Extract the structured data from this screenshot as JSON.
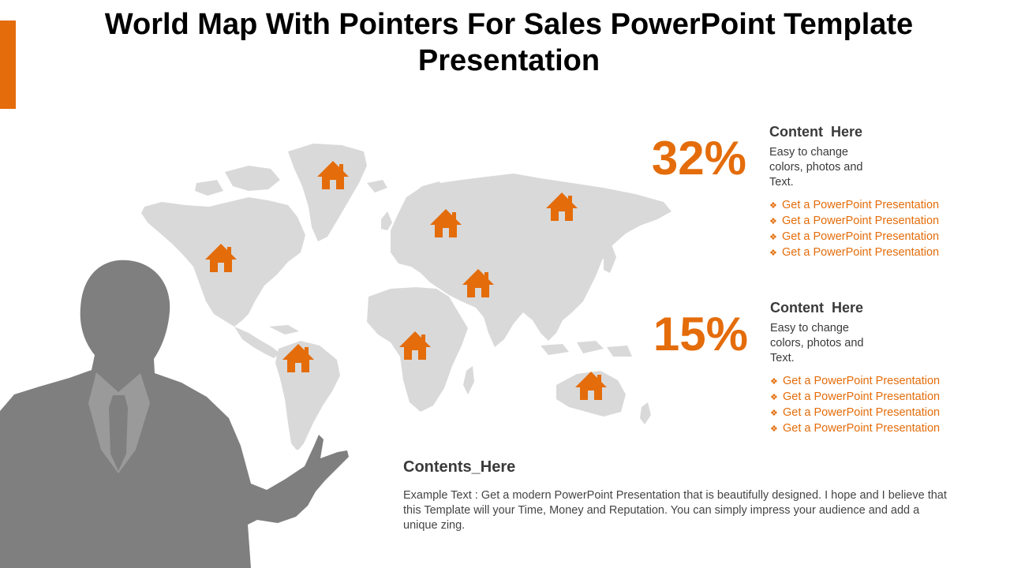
{
  "title": "World Map With Pointers For Sales PowerPoint Template Presentation",
  "colors": {
    "accent": "#E46C0A",
    "map_land": "#D9D9D9",
    "silhouette": "#7F7F7F",
    "text_dark": "#3A3A3A"
  },
  "map": {
    "pin_icon": "house-icon",
    "pin_regions": [
      "greenland",
      "north-america",
      "south-america",
      "scandinavia",
      "middle-east",
      "central-africa",
      "siberia",
      "australia"
    ]
  },
  "stats": [
    {
      "value": "32%",
      "heading": "Content  Here",
      "body": "Easy to change colors, photos and Text.",
      "bullets": [
        "Get a PowerPoint Presentation",
        "Get a PowerPoint Presentation",
        "Get a PowerPoint Presentation",
        "Get a PowerPoint Presentation"
      ]
    },
    {
      "value": "15%",
      "heading": "Content  Here",
      "body": "Easy to change colors, photos and Text.",
      "bullets": [
        "Get a PowerPoint Presentation",
        "Get a PowerPoint Presentation",
        "Get a PowerPoint Presentation",
        "Get a PowerPoint Presentation"
      ]
    }
  ],
  "bullet_icon": "diamond-bullet-icon",
  "contents": {
    "heading": "Contents_Here",
    "body": "Example Text : Get a modern PowerPoint  Presentation that is beautifully designed. I hope and I believe that this Template will your Time, Money and Reputation. You can simply impress your audience and add a unique zing."
  }
}
